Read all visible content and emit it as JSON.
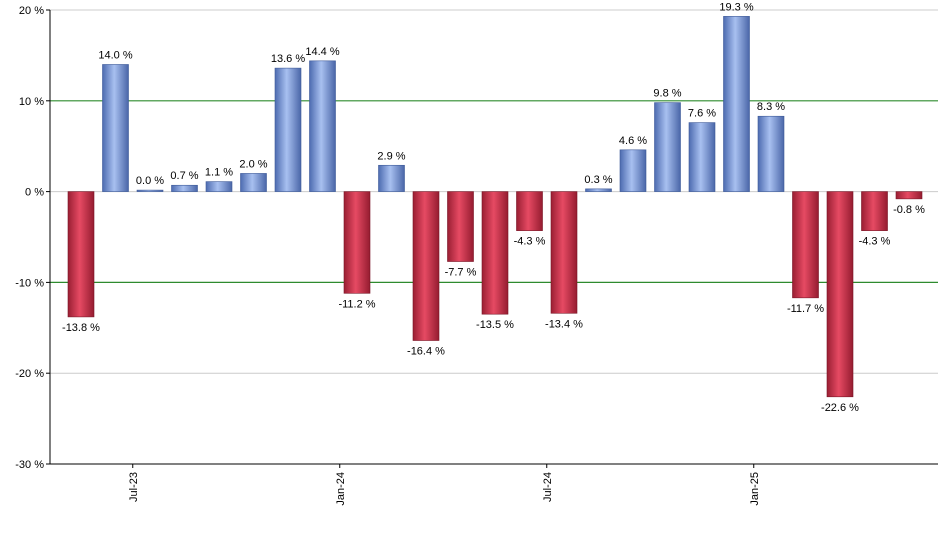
{
  "chart_data": {
    "type": "bar",
    "title": "",
    "xlabel": "",
    "ylabel": "",
    "ylim": [
      -30,
      20
    ],
    "y_ticks": [
      -30,
      -20,
      -10,
      0,
      10,
      20
    ],
    "y_tick_suffix": " %",
    "x_tick_labels": [
      {
        "label": "Jul-23",
        "at_index": 1.5
      },
      {
        "label": "Jan-24",
        "at_index": 7.5
      },
      {
        "label": "Jul-24",
        "at_index": 13.5
      },
      {
        "label": "Jan-25",
        "at_index": 19.5
      }
    ],
    "grid": true,
    "highlight_lines": [
      10,
      -10
    ],
    "values": [
      -13.8,
      14.0,
      0.0,
      0.7,
      1.1,
      2.0,
      13.6,
      14.4,
      -11.2,
      2.9,
      -16.4,
      -7.7,
      -13.5,
      -4.3,
      -13.4,
      0.3,
      4.6,
      9.8,
      7.6,
      19.3,
      8.3,
      -11.7,
      -22.6,
      -4.3,
      -0.8
    ],
    "value_labels": [
      "-13.8 %",
      "14.0 %",
      "0.0 %",
      "0.7 %",
      "1.1 %",
      "2.0 %",
      "13.6 %",
      "14.4 %",
      "-11.2 %",
      "2.9 %",
      "-16.4 %",
      "-7.7 %",
      "-13.5 %",
      "-4.3 %",
      "-13.4 %",
      "0.3 %",
      "4.6 %",
      "9.8 %",
      "7.6 %",
      "19.3 %",
      "8.3 %",
      "-11.7 %",
      "-22.6 %",
      "-4.3 %",
      "-0.8 %"
    ],
    "colors": {
      "positive": "#7f9fe0",
      "positive_edge": "#3e5a98",
      "negative": "#d9344f",
      "negative_edge": "#7a1526",
      "highlight_line": "#2e8b2e",
      "grid": "#cccccc",
      "axis": "#000000"
    }
  }
}
